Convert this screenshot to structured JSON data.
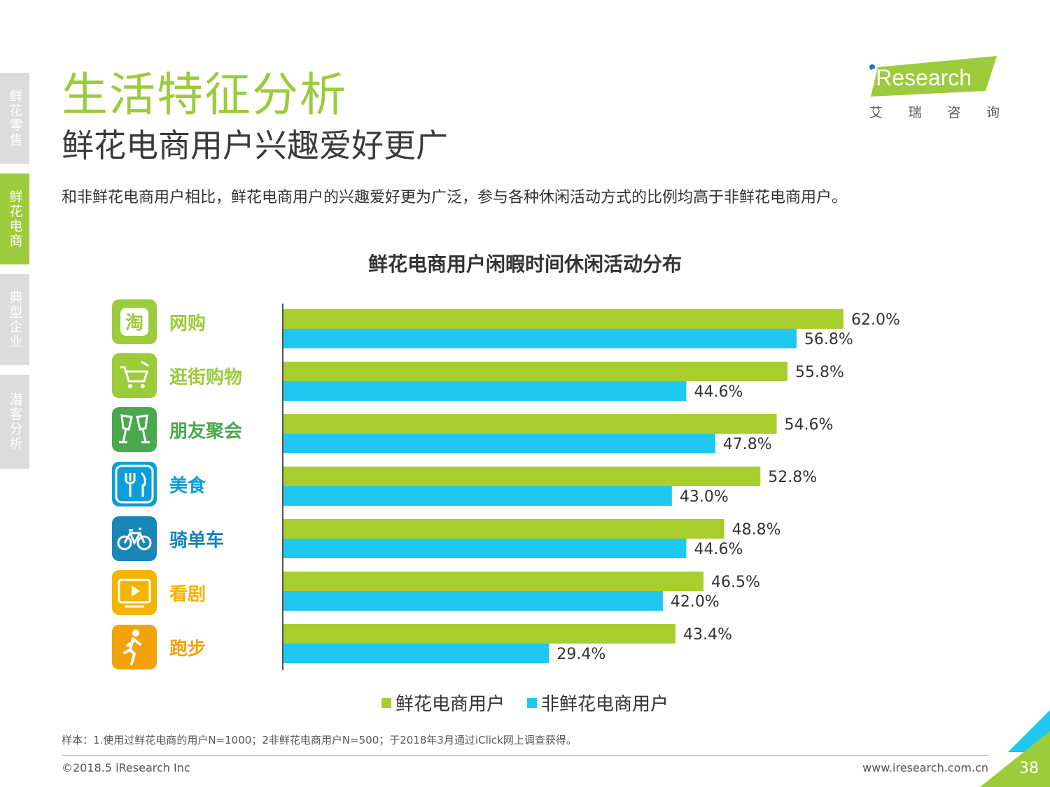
{
  "sidebar": {
    "tabs": [
      {
        "label": "鲜花零售",
        "active": false
      },
      {
        "label": "鲜花电商",
        "active": true
      },
      {
        "label": "典型企业",
        "active": false
      },
      {
        "label": "潜客分析",
        "active": false
      }
    ]
  },
  "header": {
    "title": "生活特征分析",
    "subtitle": "鲜花电商用户兴趣爱好更广",
    "description": "和非鲜花电商用户相比，鲜花电商用户的兴趣爱好更为广泛，参与各种休闲活动方式的比例均高于非鲜花电商用户。"
  },
  "logo": {
    "brand": "iResearch",
    "sub": [
      "艾",
      "瑞",
      "咨",
      "询"
    ]
  },
  "colors": {
    "accent_green": "#9ccb3b",
    "bar_green": "#a8ce2e",
    "bar_blue": "#1ec8f0",
    "sidebar_gray": "#dcdcdc"
  },
  "chart_data": {
    "type": "bar",
    "orientation": "horizontal",
    "title": "鲜花电商用户闲暇时间休闲活动分布",
    "categories": [
      "网购",
      "逛街购物",
      "朋友聚会",
      "美食",
      "骑单车",
      "看剧",
      "跑步"
    ],
    "category_icons": [
      "taobao-icon",
      "shopping-cart-icon",
      "champagne-glasses-icon",
      "fork-knife-icon",
      "bicycle-icon",
      "tv-play-icon",
      "runner-icon"
    ],
    "category_colors": [
      "#9ccb3b",
      "#9ccb3b",
      "#4aa84e",
      "#0c9ed8",
      "#1a86b8",
      "#f4b400",
      "#f4a20c"
    ],
    "series": [
      {
        "name": "鲜花电商用户",
        "values": [
          62.0,
          55.8,
          54.6,
          52.8,
          48.8,
          46.5,
          43.4
        ],
        "color": "#a8ce2e"
      },
      {
        "name": "非鲜花电商用户",
        "values": [
          56.8,
          44.6,
          47.8,
          43.0,
          44.6,
          42.0,
          29.4
        ],
        "color": "#1ec8f0"
      }
    ],
    "value_format": "0.0%",
    "xlim": [
      0,
      62
    ],
    "legend_position": "bottom",
    "grid": false
  },
  "footer": {
    "note": "样本：1.使用过鲜花电商的用户N=1000；2非鲜花电商用户N=500；于2018年3月通过iClick网上调查获得。",
    "copyright": "©2018.5 iResearch Inc",
    "website": "www.iresearch.com.cn",
    "page": "38"
  }
}
